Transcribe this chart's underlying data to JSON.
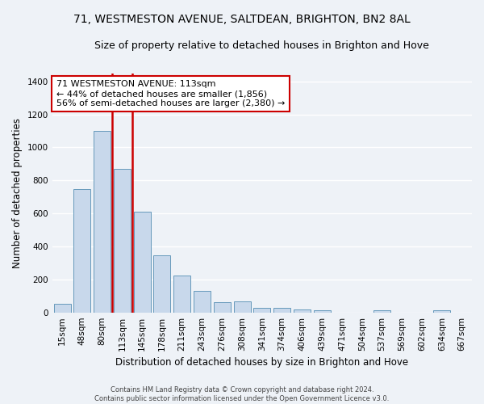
{
  "title1": "71, WESTMESTON AVENUE, SALTDEAN, BRIGHTON, BN2 8AL",
  "title2": "Size of property relative to detached houses in Brighton and Hove",
  "xlabel": "Distribution of detached houses by size in Brighton and Hove",
  "ylabel": "Number of detached properties",
  "categories": [
    "15sqm",
    "48sqm",
    "80sqm",
    "113sqm",
    "145sqm",
    "178sqm",
    "211sqm",
    "243sqm",
    "276sqm",
    "308sqm",
    "341sqm",
    "374sqm",
    "406sqm",
    "439sqm",
    "471sqm",
    "504sqm",
    "537sqm",
    "569sqm",
    "602sqm",
    "634sqm",
    "667sqm"
  ],
  "values": [
    50,
    750,
    1100,
    870,
    610,
    345,
    225,
    130,
    63,
    65,
    28,
    28,
    18,
    12,
    0,
    0,
    12,
    0,
    0,
    12,
    0
  ],
  "bar_color": "#c8d8eb",
  "bar_edge_color": "#6699bb",
  "highlight_index": 3,
  "highlight_line_color": "#cc0000",
  "annotation_text": "71 WESTMESTON AVENUE: 113sqm\n← 44% of detached houses are smaller (1,856)\n56% of semi-detached houses are larger (2,380) →",
  "annotation_box_color": "#ffffff",
  "annotation_box_edge": "#cc0000",
  "ylim": [
    0,
    1450
  ],
  "yticks": [
    0,
    200,
    400,
    600,
    800,
    1000,
    1200,
    1400
  ],
  "footer1": "Contains HM Land Registry data © Crown copyright and database right 2024.",
  "footer2": "Contains public sector information licensed under the Open Government Licence v3.0.",
  "background_color": "#eef2f7",
  "grid_color": "#ffffff",
  "title1_fontsize": 10,
  "title2_fontsize": 9,
  "tick_fontsize": 7.5,
  "label_fontsize": 8.5,
  "annotation_fontsize": 8
}
